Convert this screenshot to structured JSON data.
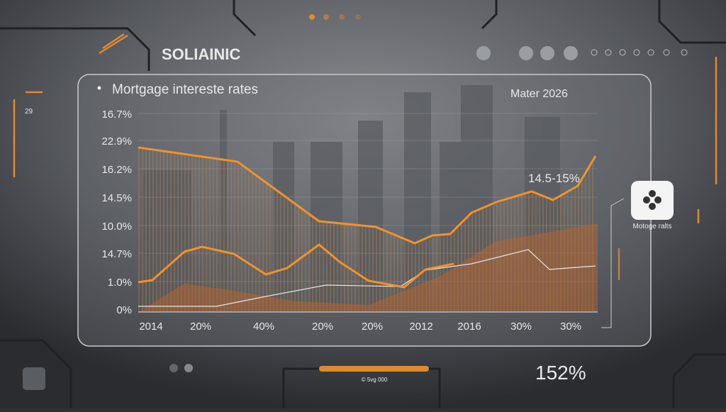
{
  "header": {
    "brand": "SOLIAINIC"
  },
  "left": {
    "number": "29"
  },
  "panel": {
    "title": "Mortgage intereste rates",
    "date": "Mater 2026",
    "annotation": "14.5-15%",
    "y_labels": [
      "16.7%",
      "22.9%",
      "16.2%",
      "14.5%",
      "10.0%",
      "14.7%",
      "1.0%",
      "0%"
    ],
    "x_labels": [
      "2014",
      "20%",
      "40%",
      "20%",
      "20%",
      "2012",
      "2016",
      "30%",
      "30%"
    ]
  },
  "side": {
    "label": "Motoge ralts"
  },
  "footer": {
    "value": "152%",
    "caption": "© 5vg 000"
  }
}
